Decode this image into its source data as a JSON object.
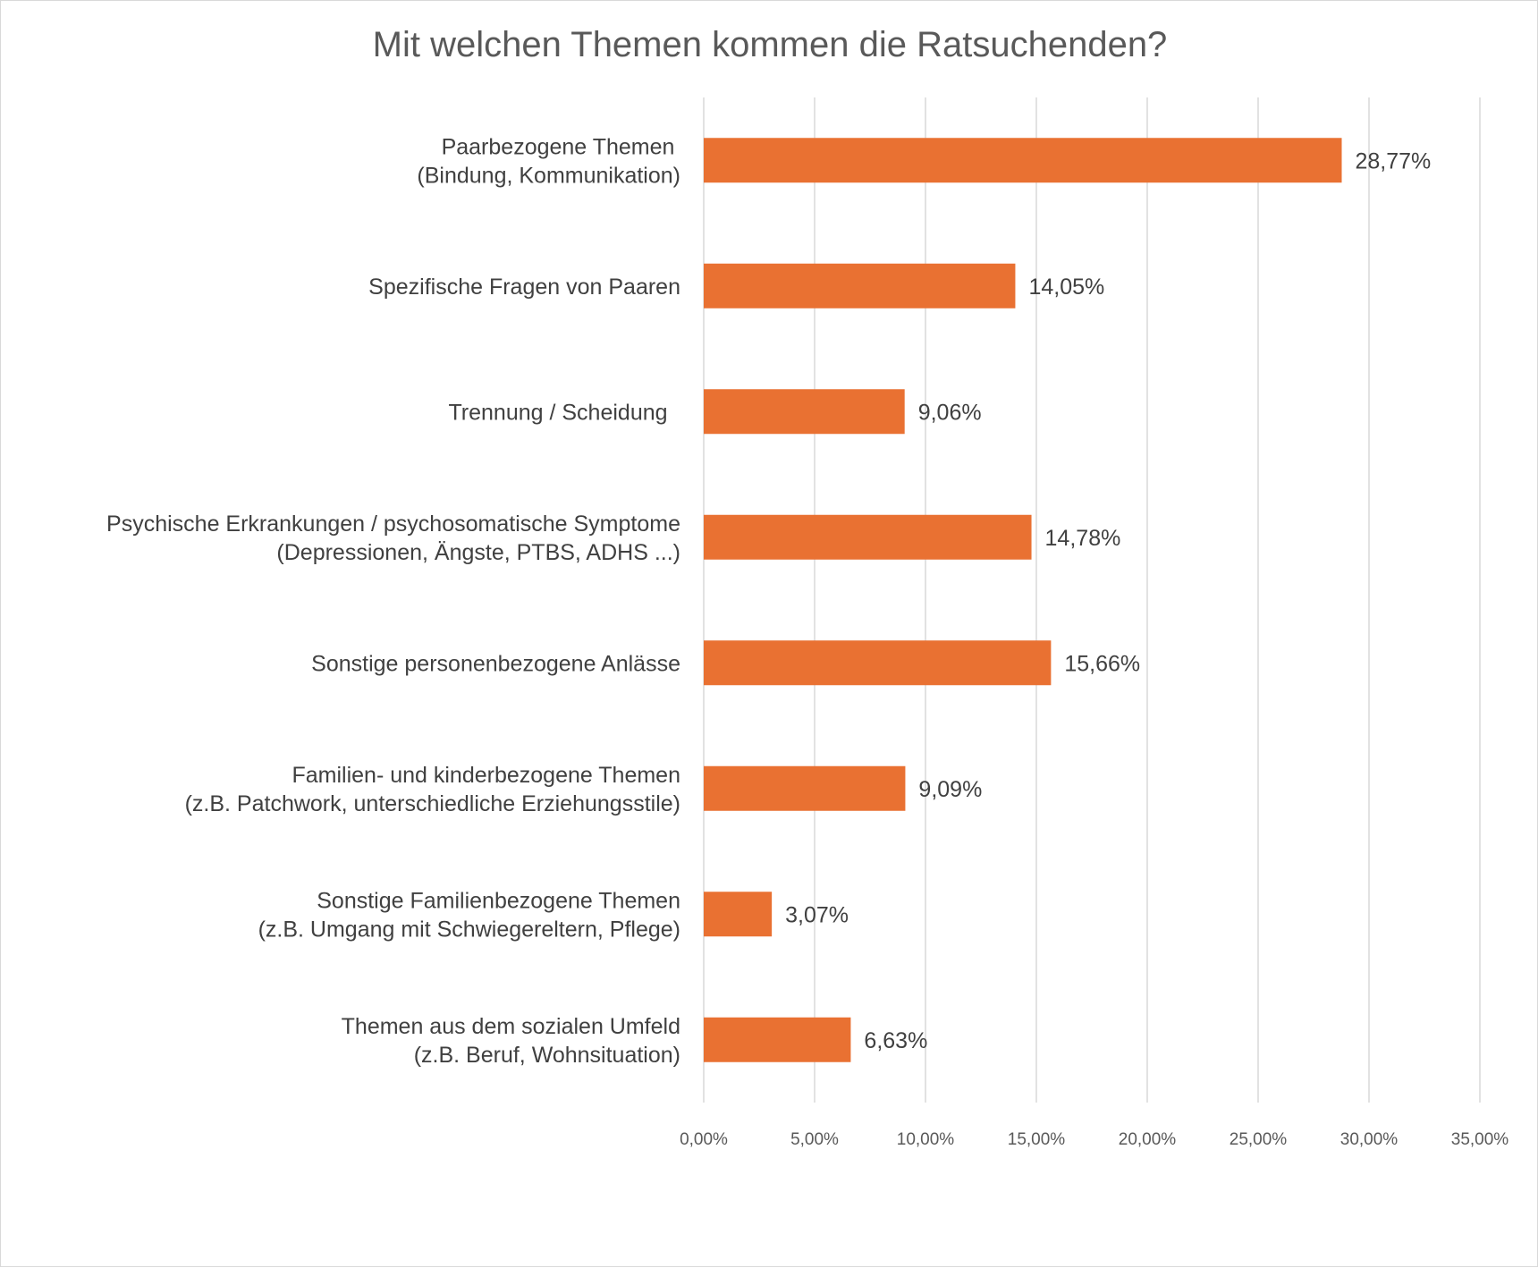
{
  "chart_data": {
    "type": "bar",
    "orientation": "horizontal",
    "title": "Mit welchen Themen kommen die Ratsuchenden?",
    "categories": [
      [
        "Paarbezogene Themen",
        "(Bindung, Kommunikation)"
      ],
      [
        "Spezifische Fragen von Paaren"
      ],
      [
        "Trennung / Scheidung"
      ],
      [
        "Psychische Erkrankungen / psychosomatische Symptome",
        "(Depressionen, Ängste, PTBS, ADHS ...)"
      ],
      [
        "Sonstige personenbezogene Anlässe"
      ],
      [
        "Familien- und kinderbezogene Themen",
        "(z.B. Patchwork, unterschiedliche Erziehungsstile)"
      ],
      [
        "Sonstige Familienbezogene Themen",
        "(z.B. Umgang mit Schwiegereltern, Pflege)"
      ],
      [
        "Themen aus dem sozialen Umfeld",
        "(z.B. Beruf, Wohnsituation)"
      ]
    ],
    "values": [
      28.77,
      14.05,
      9.06,
      14.78,
      15.66,
      9.09,
      3.07,
      6.63
    ],
    "data_labels": [
      "28,77%",
      "14,05%",
      "9,06%",
      "14,78%",
      "15,66%",
      "9,09%",
      "3,07%",
      "6,63%"
    ],
    "xlim": [
      0,
      35
    ],
    "x_ticks": [
      0,
      5,
      10,
      15,
      20,
      25,
      30,
      35
    ],
    "x_tick_labels": [
      "0,00%",
      "5,00%",
      "10,00%",
      "15,00%",
      "20,00%",
      "25,00%",
      "30,00%",
      "35,00%"
    ],
    "xlabel": "",
    "ylabel": "",
    "grid": "vertical",
    "legend": "none",
    "colors": {
      "bar": "#E97132",
      "gridline": "#d9d9d9",
      "title": "#595959",
      "label": "#404040",
      "tick": "#595959"
    }
  }
}
